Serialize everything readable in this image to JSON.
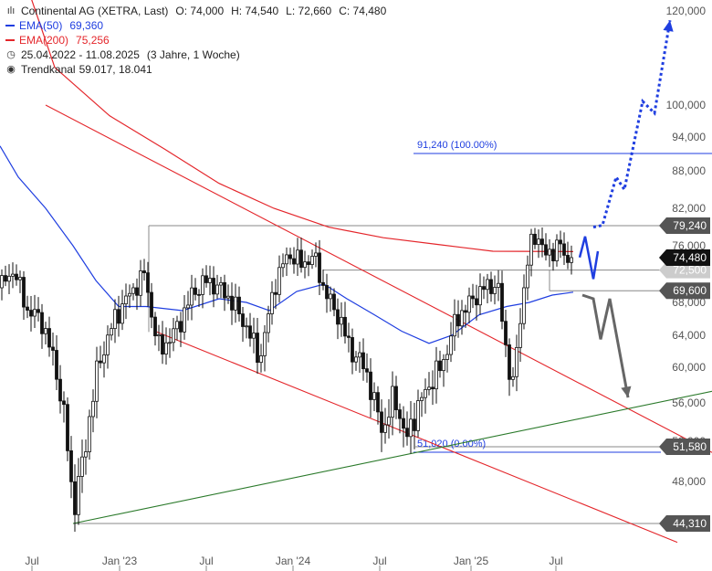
{
  "legend": {
    "title": "Continental AG (XETRA, Last)",
    "ohlc": {
      "o": "O: 74,000",
      "h": "H: 74,540",
      "l": "L: 72,660",
      "c": "C: 74,480"
    },
    "ema50": {
      "label": "EMA(50)",
      "value": "69,360"
    },
    "ema200": {
      "label": "EMA(200)",
      "value": "75,256"
    },
    "range": {
      "dates": "25.04.2022 - 11.08.2025",
      "span": "(3 Jahre, 1 Woche)"
    },
    "channel": {
      "label": "Trendkanal",
      "value": "59.017, 18.041"
    }
  },
  "chart_data": {
    "type": "candlestick",
    "title": "Continental AG (XETRA, Last)",
    "y_ticks": [
      "48,000",
      "52,000",
      "56,000",
      "60,000",
      "64,000",
      "68,000",
      "72,000",
      "76,000",
      "82,000",
      "88,000",
      "94,000",
      "100,000",
      "120,000"
    ],
    "x_ticks": [
      "Jul",
      "Jan '23",
      "Jul",
      "Jan '24",
      "Jul",
      "Jan '25",
      "Jul"
    ],
    "ylim": [
      42,
      122
    ],
    "price_marks": [
      {
        "label": "79,240",
        "value": 79.24
      },
      {
        "label": "74,480",
        "value": 74.48,
        "highlight": true
      },
      {
        "label": "69,600",
        "value": 69.6
      },
      {
        "label": "51,580",
        "value": 51.58
      },
      {
        "label": "44,310",
        "value": 44.31
      }
    ],
    "hidden_mark": {
      "label": "72,500",
      "value": 72.5
    },
    "fib_levels": [
      {
        "label": "91,240 (100.00%)",
        "value": 91.24
      },
      {
        "label": "51,020 (0.00%)",
        "value": 51.02
      }
    ],
    "price_series": [
      {
        "t": 0,
        "v": 70.0
      },
      {
        "t": 15,
        "v": 72.5
      },
      {
        "t": 30,
        "v": 67.0
      },
      {
        "t": 45,
        "v": 66.0
      },
      {
        "t": 60,
        "v": 60.5
      },
      {
        "t": 72,
        "v": 53.5
      },
      {
        "t": 80,
        "v": 45.5
      },
      {
        "t": 92,
        "v": 50.5
      },
      {
        "t": 105,
        "v": 59.0
      },
      {
        "t": 120,
        "v": 64.5
      },
      {
        "t": 135,
        "v": 68.0
      },
      {
        "t": 145,
        "v": 69.5
      },
      {
        "t": 158,
        "v": 72.0
      },
      {
        "t": 167,
        "v": 66.0
      },
      {
        "t": 175,
        "v": 62.0
      },
      {
        "t": 195,
        "v": 65.0
      },
      {
        "t": 210,
        "v": 69.0
      },
      {
        "t": 225,
        "v": 71.0
      },
      {
        "t": 240,
        "v": 70.0
      },
      {
        "t": 255,
        "v": 68.0
      },
      {
        "t": 270,
        "v": 65.0
      },
      {
        "t": 285,
        "v": 61.0
      },
      {
        "t": 300,
        "v": 70.0
      },
      {
        "t": 315,
        "v": 75.0
      },
      {
        "t": 330,
        "v": 73.5
      },
      {
        "t": 345,
        "v": 74.5
      },
      {
        "t": 355,
        "v": 69.5
      },
      {
        "t": 370,
        "v": 66.5
      },
      {
        "t": 385,
        "v": 62.0
      },
      {
        "t": 400,
        "v": 60.0
      },
      {
        "t": 410,
        "v": 56.0
      },
      {
        "t": 420,
        "v": 53.0
      },
      {
        "t": 432,
        "v": 57.0
      },
      {
        "t": 445,
        "v": 52.0
      },
      {
        "t": 455,
        "v": 55.0
      },
      {
        "t": 470,
        "v": 58.0
      },
      {
        "t": 485,
        "v": 60.5
      },
      {
        "t": 500,
        "v": 66.0
      },
      {
        "t": 515,
        "v": 68.0
      },
      {
        "t": 530,
        "v": 70.0
      },
      {
        "t": 545,
        "v": 70.5
      },
      {
        "t": 555,
        "v": 61.5
      },
      {
        "t": 562,
        "v": 58.0
      },
      {
        "t": 572,
        "v": 68.0
      },
      {
        "t": 580,
        "v": 76.0
      },
      {
        "t": 590,
        "v": 77.5
      },
      {
        "t": 600,
        "v": 74.0
      },
      {
        "t": 612,
        "v": 77.0
      },
      {
        "t": 620,
        "v": 73.5
      },
      {
        "t": 628,
        "v": 74.48
      }
    ],
    "ema50": [
      {
        "t": 0,
        "v": 92.5
      },
      {
        "t": 20,
        "v": 87.0
      },
      {
        "t": 50,
        "v": 82.0
      },
      {
        "t": 80,
        "v": 76.0
      },
      {
        "t": 105,
        "v": 71.0
      },
      {
        "t": 130,
        "v": 67.5
      },
      {
        "t": 160,
        "v": 67.5
      },
      {
        "t": 200,
        "v": 67.0
      },
      {
        "t": 240,
        "v": 68.5
      },
      {
        "t": 270,
        "v": 68.0
      },
      {
        "t": 295,
        "v": 67.0
      },
      {
        "t": 325,
        "v": 69.5
      },
      {
        "t": 355,
        "v": 70.5
      },
      {
        "t": 380,
        "v": 68.5
      },
      {
        "t": 410,
        "v": 66.5
      },
      {
        "t": 440,
        "v": 64.5
      },
      {
        "t": 470,
        "v": 63.0
      },
      {
        "t": 495,
        "v": 64.0
      },
      {
        "t": 525,
        "v": 66.5
      },
      {
        "t": 555,
        "v": 67.5
      },
      {
        "t": 580,
        "v": 68.0
      },
      {
        "t": 605,
        "v": 69.0
      },
      {
        "t": 628,
        "v": 69.4
      }
    ],
    "ema200": [
      {
        "t": 0,
        "v": 145
      },
      {
        "t": 60,
        "v": 108
      },
      {
        "t": 120,
        "v": 98.0
      },
      {
        "t": 180,
        "v": 92.0
      },
      {
        "t": 240,
        "v": 86.0
      },
      {
        "t": 300,
        "v": 82.0
      },
      {
        "t": 360,
        "v": 79.0
      },
      {
        "t": 420,
        "v": 77.3
      },
      {
        "t": 480,
        "v": 76.2
      },
      {
        "t": 540,
        "v": 75.3
      },
      {
        "t": 628,
        "v": 75.256
      }
    ],
    "trend_lines": [
      {
        "name": "channel-upper",
        "points": [
          {
            "t": 50,
            "v": 100
          },
          {
            "t": 780,
            "v": 51.0
          }
        ],
        "color": "#e4262b"
      },
      {
        "name": "channel-lower",
        "points": [
          {
            "t": 172,
            "v": 64.4
          },
          {
            "t": 742,
            "v": 41.8
          }
        ],
        "color": "#e4262b"
      },
      {
        "name": "support",
        "points": [
          {
            "t": 80,
            "v": 44.31
          },
          {
            "t": 780,
            "v": 57.3
          }
        ],
        "color": "#2b7a2b"
      }
    ],
    "scenario_bull": [
      {
        "t": 650,
        "v": 79.0
      },
      {
        "t": 660,
        "v": 79.3
      },
      {
        "t": 675,
        "v": 87.0
      },
      {
        "t": 684,
        "v": 85.0
      },
      {
        "t": 704,
        "v": 100.8
      },
      {
        "t": 717,
        "v": 98.5
      },
      {
        "t": 734,
        "v": 118.0
      }
    ],
    "scenario_bear": [
      {
        "t": 638,
        "v": 69.0
      },
      {
        "t": 650,
        "v": 68.5
      },
      {
        "t": 658,
        "v": 63.5
      },
      {
        "t": 668,
        "v": 68.5
      },
      {
        "t": 688,
        "v": 56.6
      }
    ],
    "scenario_near": [
      {
        "t": 635,
        "v": 74.5
      },
      {
        "t": 641,
        "v": 77.5
      },
      {
        "t": 650,
        "v": 71.2
      },
      {
        "t": 655,
        "v": 75.3
      }
    ],
    "colors": {
      "ema50": "#1f3ee0",
      "ema200": "#e4262b",
      "candle": "#111111",
      "bull_scenario": "#1f3ee0",
      "bear_scenario": "#666666",
      "fib": "#1f3ee0",
      "label_bg": "#555555",
      "label_highlight": "#111111"
    }
  }
}
